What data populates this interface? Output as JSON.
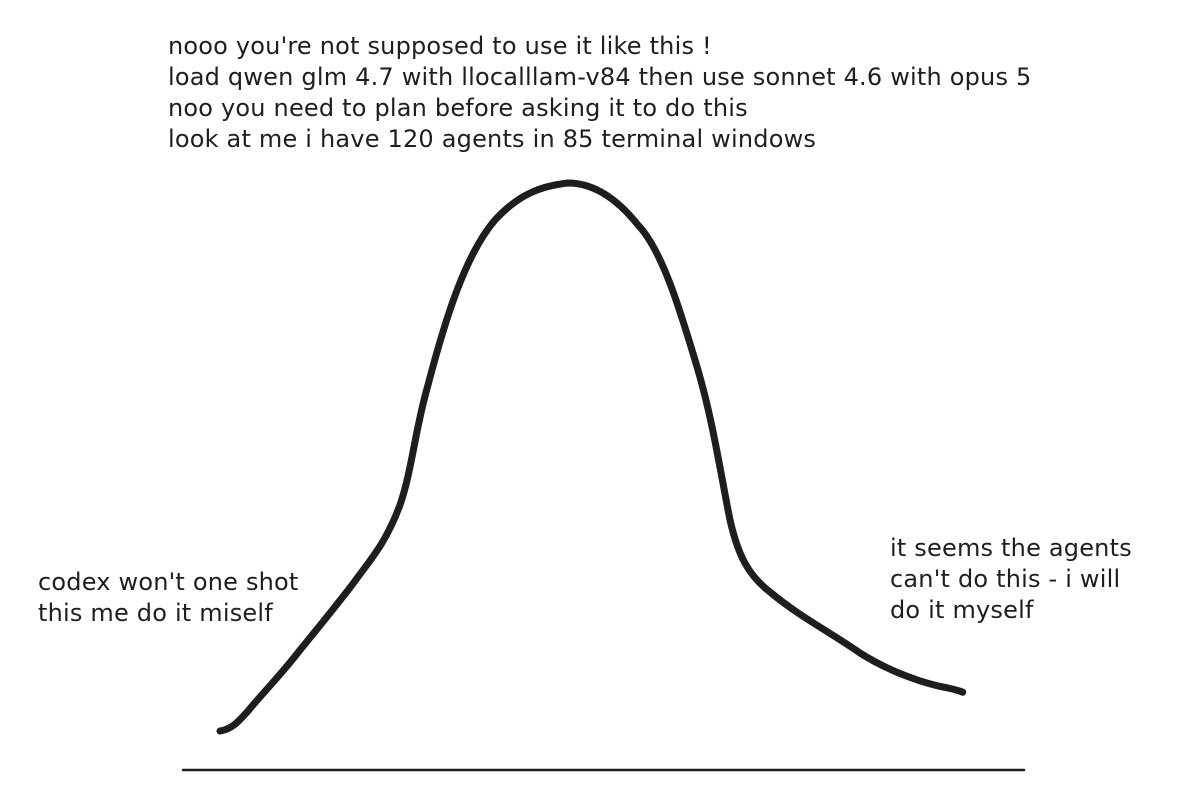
{
  "top_note": {
    "lines": [
      "nooo you're not supposed to use it like this !",
      "load qwen glm 4.7 with llocalllam-v84 then use sonnet 4.6 with opus 5",
      "noo you need to plan before asking it to do this",
      "look at me i have 120 agents in 85 terminal windows"
    ]
  },
  "left_note": {
    "lines": [
      "codex won't one shot",
      "this me do it miself"
    ]
  },
  "right_note": {
    "lines": [
      "it seems the agents",
      "can't do this - i will",
      "do it myself"
    ]
  },
  "colors": {
    "ink": "#1e1e1e",
    "background": "#ffffff"
  }
}
